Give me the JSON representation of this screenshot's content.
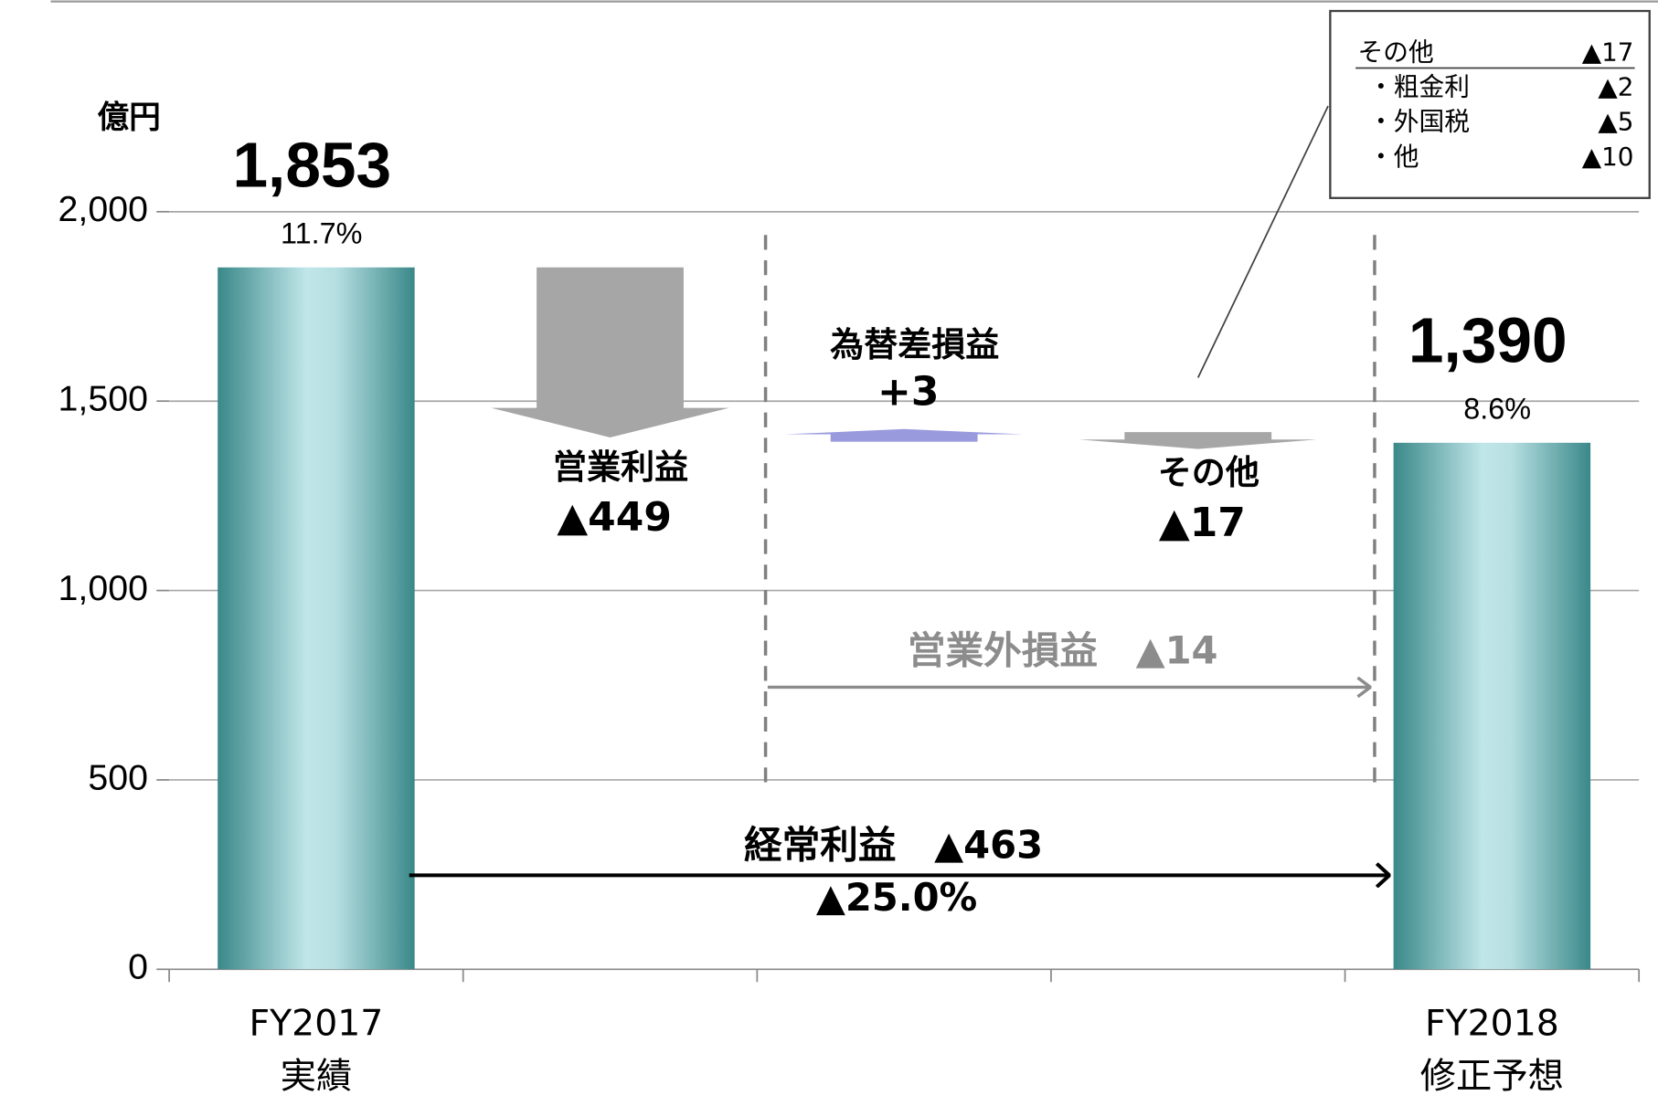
{
  "chart_data": {
    "type": "waterfall",
    "unit_label": "億円",
    "categories": [
      "FY2017\n実績",
      null,
      null,
      null,
      "FY2018\n修正予想"
    ],
    "segment_names": [
      null,
      "営業利益",
      "為替差損益",
      "その他",
      null
    ],
    "values": [
      1853,
      -449,
      3,
      -17,
      1390
    ],
    "value_labels": [
      "1,853",
      "▲449",
      "+3",
      "▲17",
      "1,390"
    ],
    "is_total": [
      true,
      false,
      false,
      false,
      true
    ],
    "margin_labels": [
      "11.7%",
      null,
      null,
      null,
      "8.6%"
    ],
    "colors": {
      "total": "#3f8f90",
      "decrease": "#a6a6a6",
      "increase": "#9999dd"
    },
    "ylim": [
      0,
      2000
    ],
    "yticks": [
      0,
      500,
      {
        "value": 1000,
        "label": "1,000"
      },
      {
        "value": 1500,
        "label": "1,500"
      },
      {
        "value": 2000,
        "label": "2,000"
      }
    ],
    "grid": true,
    "annotations": {
      "non_operating": "営業外損益　▲14",
      "ordinary": "経常利益　▲463",
      "ordinary_pct": "▲25.0%"
    },
    "inset_table": {
      "rows": [
        [
          "その他",
          "▲17"
        ],
        [
          "・粗金利",
          "▲2"
        ],
        [
          "・外国税",
          "▲5"
        ],
        [
          "・他",
          "▲10"
        ]
      ]
    }
  }
}
